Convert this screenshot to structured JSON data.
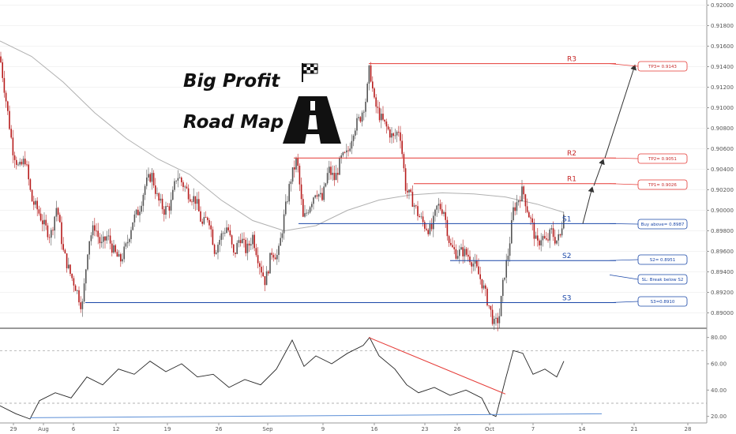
{
  "chart_data": [
    {
      "type": "candlestick",
      "title": "Big Profit Road Map",
      "title_lines": [
        "Big Profit",
        "Road Map"
      ],
      "ylim": [
        0.8885,
        0.9205
      ],
      "y_ticks": [
        0.89,
        0.892,
        0.894,
        0.896,
        0.898,
        0.9,
        0.902,
        0.904,
        0.906,
        0.908,
        0.91,
        0.912,
        0.914,
        0.916,
        0.918,
        0.92
      ],
      "y_tick_labels": [
        "0.89000",
        "0.89200",
        "0.89400",
        "0.89600",
        "0.89800",
        "0.90000",
        "0.90200",
        "0.90400",
        "0.90600",
        "0.90800",
        "0.91000",
        "0.91200",
        "0.91400",
        "0.91600",
        "0.91800",
        "0.92000"
      ],
      "x_ticks": [
        "29",
        "Aug",
        "6",
        "12",
        "19",
        "26",
        "Sep",
        "9",
        "16",
        "23",
        "26",
        "Oct",
        "7",
        "14",
        "21",
        "28"
      ],
      "price_path": [
        [
          0,
          0.915
        ],
        [
          8,
          0.9105
        ],
        [
          16,
          0.906
        ],
        [
          24,
          0.904
        ],
        [
          32,
          0.905
        ],
        [
          40,
          0.901
        ],
        [
          48,
          0.9
        ],
        [
          56,
          0.8985
        ],
        [
          64,
          0.8975
        ],
        [
          72,
          0.9005
        ],
        [
          80,
          0.896
        ],
        [
          88,
          0.894
        ],
        [
          96,
          0.8925
        ],
        [
          104,
          0.8905
        ],
        [
          112,
          0.897
        ],
        [
          120,
          0.8985
        ],
        [
          128,
          0.8965
        ],
        [
          136,
          0.8975
        ],
        [
          144,
          0.896
        ],
        [
          152,
          0.895
        ],
        [
          160,
          0.8965
        ],
        [
          168,
          0.899
        ],
        [
          176,
          0.9
        ],
        [
          184,
          0.9025
        ],
        [
          192,
          0.9035
        ],
        [
          200,
          0.901
        ],
        [
          208,
          0.9
        ],
        [
          216,
          0.9005
        ],
        [
          224,
          0.9035
        ],
        [
          232,
          0.9025
        ],
        [
          240,
          0.9015
        ],
        [
          248,
          0.901
        ],
        [
          256,
          0.8985
        ],
        [
          264,
          0.8995
        ],
        [
          272,
          0.896
        ],
        [
          280,
          0.8975
        ],
        [
          288,
          0.8985
        ],
        [
          296,
          0.8955
        ],
        [
          304,
          0.8975
        ],
        [
          312,
          0.896
        ],
        [
          320,
          0.8975
        ],
        [
          328,
          0.895
        ],
        [
          336,
          0.893
        ],
        [
          344,
          0.896
        ],
        [
          352,
          0.8955
        ],
        [
          360,
          0.8995
        ],
        [
          368,
          0.903
        ],
        [
          376,
          0.905
        ],
        [
          384,
          0.899
        ],
        [
          392,
          0.9005
        ],
        [
          400,
          0.902
        ],
        [
          408,
          0.901
        ],
        [
          416,
          0.904
        ],
        [
          424,
          0.903
        ],
        [
          432,
          0.905
        ],
        [
          440,
          0.9055
        ],
        [
          448,
          0.908
        ],
        [
          456,
          0.909
        ],
        [
          464,
          0.911
        ],
        [
          468,
          0.914
        ],
        [
          474,
          0.9105
        ],
        [
          482,
          0.909
        ],
        [
          490,
          0.908
        ],
        [
          498,
          0.907
        ],
        [
          506,
          0.908
        ],
        [
          514,
          0.902
        ],
        [
          522,
          0.901
        ],
        [
          530,
          0.8995
        ],
        [
          538,
          0.8985
        ],
        [
          546,
          0.898
        ],
        [
          554,
          0.9005
        ],
        [
          562,
          0.9
        ],
        [
          570,
          0.8965
        ],
        [
          578,
          0.8958
        ],
        [
          586,
          0.896
        ],
        [
          594,
          0.8955
        ],
        [
          602,
          0.8945
        ],
        [
          610,
          0.893
        ],
        [
          618,
          0.891
        ],
        [
          626,
          0.8888
        ],
        [
          632,
          0.8895
        ],
        [
          638,
          0.8935
        ],
        [
          644,
          0.896
        ],
        [
          650,
          0.9
        ],
        [
          656,
          0.901
        ],
        [
          662,
          0.902
        ],
        [
          668,
          0.9
        ],
        [
          674,
          0.8985
        ],
        [
          680,
          0.8965
        ],
        [
          686,
          0.8975
        ],
        [
          692,
          0.8968
        ],
        [
          698,
          0.898
        ],
        [
          704,
          0.897
        ],
        [
          710,
          0.8975
        ],
        [
          714,
          0.9003
        ]
      ],
      "ma_path": [
        [
          0,
          0.9165
        ],
        [
          40,
          0.915
        ],
        [
          80,
          0.9125
        ],
        [
          120,
          0.9095
        ],
        [
          160,
          0.907
        ],
        [
          200,
          0.905
        ],
        [
          240,
          0.9035
        ],
        [
          280,
          0.901
        ],
        [
          320,
          0.899
        ],
        [
          360,
          0.898
        ],
        [
          400,
          0.8985
        ],
        [
          440,
          0.9
        ],
        [
          480,
          0.901
        ],
        [
          520,
          0.9015
        ],
        [
          560,
          0.9017
        ],
        [
          600,
          0.9016
        ],
        [
          640,
          0.9013
        ],
        [
          680,
          0.9006
        ],
        [
          714,
          0.8998
        ]
      ],
      "levels": [
        {
          "name": "R3",
          "value": 0.9143,
          "color": "#e53935",
          "x_start": 467,
          "label_x": 718
        },
        {
          "name": "R2",
          "value": 0.9051,
          "color": "#e53935",
          "x_start": 372,
          "label_x": 718
        },
        {
          "name": "R1",
          "value": 0.9026,
          "color": "#e53935",
          "x_start": 524,
          "label_x": 718
        },
        {
          "name": "S1",
          "value": 0.8987,
          "color": "#1a47a8",
          "x_start": 378,
          "label_x": 712
        },
        {
          "name": "S2",
          "value": 0.8951,
          "color": "#1a47a8",
          "x_start": 570,
          "label_x": 712
        },
        {
          "name": "S3",
          "value": 0.891,
          "color": "#1a47a8",
          "x_start": 108,
          "label_x": 712
        }
      ],
      "callouts": [
        {
          "text": "TP3= 0.9143",
          "value": 0.9143,
          "color": "#e53935"
        },
        {
          "text": "TP2= 0.9051",
          "value": 0.9051,
          "color": "#e53935"
        },
        {
          "text": "TP1= 0.9026",
          "value": 0.9026,
          "color": "#e53935"
        },
        {
          "text": "Buy above= 0.8987",
          "value": 0.8987,
          "color": "#1a47a8"
        },
        {
          "text": "S2= 0.8951",
          "value": 0.8951,
          "color": "#1a47a8"
        },
        {
          "text": "SL: Break below S2",
          "value": 0.8937,
          "color": "#1a47a8"
        },
        {
          "text": "S3=0.8910",
          "value": 0.891,
          "color": "#1a47a8"
        }
      ],
      "projection_arrows": [
        [
          0.8987,
          0.9024
        ],
        [
          0.9024,
          0.9051
        ],
        [
          0.9051,
          0.9143
        ]
      ]
    },
    {
      "type": "line",
      "indicator": "oscillator",
      "ylim": [
        15,
        87
      ],
      "y_ticks": [
        20,
        40,
        60,
        80
      ],
      "y_tick_labels": [
        "20.00",
        "40.00",
        "60.00",
        "80.00"
      ],
      "dashed_levels": [
        30,
        70
      ],
      "rsi_path": [
        [
          0,
          28
        ],
        [
          20,
          22
        ],
        [
          38,
          18
        ],
        [
          50,
          32
        ],
        [
          70,
          38
        ],
        [
          90,
          34
        ],
        [
          110,
          50
        ],
        [
          130,
          44
        ],
        [
          150,
          56
        ],
        [
          170,
          52
        ],
        [
          190,
          62
        ],
        [
          210,
          54
        ],
        [
          230,
          60
        ],
        [
          250,
          50
        ],
        [
          270,
          52
        ],
        [
          290,
          42
        ],
        [
          310,
          48
        ],
        [
          330,
          44
        ],
        [
          350,
          56
        ],
        [
          370,
          78
        ],
        [
          385,
          58
        ],
        [
          400,
          66
        ],
        [
          420,
          60
        ],
        [
          440,
          68
        ],
        [
          460,
          74
        ],
        [
          468,
          80
        ],
        [
          480,
          66
        ],
        [
          500,
          56
        ],
        [
          515,
          44
        ],
        [
          530,
          38
        ],
        [
          550,
          42
        ],
        [
          570,
          36
        ],
        [
          590,
          40
        ],
        [
          610,
          34
        ],
        [
          620,
          22
        ],
        [
          628,
          20
        ],
        [
          640,
          48
        ],
        [
          650,
          70
        ],
        [
          662,
          68
        ],
        [
          675,
          52
        ],
        [
          690,
          56
        ],
        [
          705,
          50
        ],
        [
          714,
          62
        ]
      ],
      "trendlines": [
        {
          "from": [
            467,
            80
          ],
          "to": [
            640,
            37
          ],
          "color": "#e53935"
        },
        {
          "from": [
            38,
            19
          ],
          "to": [
            762,
            22
          ],
          "color": "#5b8ed6"
        }
      ]
    }
  ],
  "colors": {
    "up_candle": "#555555",
    "down_candle": "#b71c1c",
    "ma_line": "#b0b0b0",
    "resistance": "#e53935",
    "support": "#1a47a8",
    "projection": "#333333"
  },
  "icons": [
    "checkered-flag-icon",
    "road-icon"
  ]
}
